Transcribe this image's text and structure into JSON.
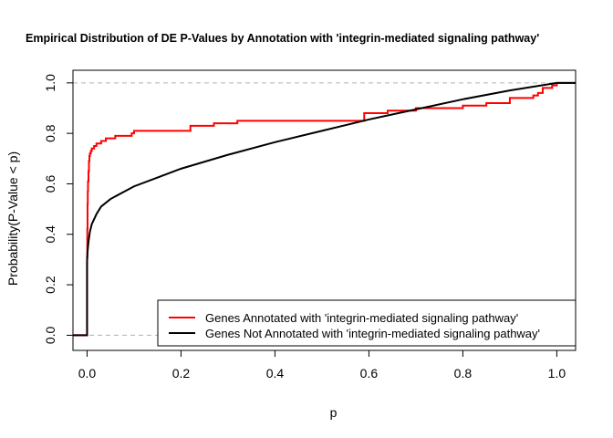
{
  "chart_data": {
    "type": "line",
    "title": "Empirical Distribution of DE P-Values by Annotation with 'integrin-mediated signaling pathway'",
    "xlabel": "p",
    "ylabel": "Probability(P-Value < p)",
    "xlim": [
      -0.03,
      1.04
    ],
    "ylim": [
      -0.06,
      1.05
    ],
    "xticks": [
      "0.0",
      "0.2",
      "0.4",
      "0.6",
      "0.8",
      "1.0"
    ],
    "yticks": [
      "0.0",
      "0.2",
      "0.4",
      "0.6",
      "0.8",
      "1.0"
    ],
    "grid": false,
    "reference_lines": [
      0,
      1
    ],
    "legend_position": "bottom-right",
    "series": [
      {
        "name": "Genes Annotated with 'integrin-mediated signaling pathway'",
        "color": "#ff0000",
        "step": true,
        "x": [
          -0.03,
          0.0,
          0.0005,
          0.001,
          0.0015,
          0.002,
          0.003,
          0.004,
          0.005,
          0.006,
          0.008,
          0.01,
          0.015,
          0.02,
          0.03,
          0.04,
          0.05,
          0.06,
          0.08,
          0.095,
          0.1,
          0.2,
          0.22,
          0.27,
          0.32,
          0.58,
          0.59,
          0.64,
          0.7,
          0.8,
          0.85,
          0.9,
          0.95,
          0.96,
          0.97,
          0.99,
          1.0,
          1.04
        ],
        "y": [
          0.0,
          0.31,
          0.42,
          0.52,
          0.57,
          0.61,
          0.65,
          0.69,
          0.71,
          0.72,
          0.73,
          0.74,
          0.75,
          0.76,
          0.77,
          0.78,
          0.78,
          0.79,
          0.79,
          0.8,
          0.81,
          0.81,
          0.83,
          0.84,
          0.85,
          0.85,
          0.88,
          0.89,
          0.9,
          0.91,
          0.92,
          0.94,
          0.95,
          0.96,
          0.98,
          0.99,
          1.0,
          1.0
        ]
      },
      {
        "name": "Genes Not Annotated with 'integrin-mediated signaling pathway'",
        "color": "#000000",
        "step": false,
        "x": [
          -0.03,
          0.0,
          0.0,
          0.001,
          0.003,
          0.006,
          0.01,
          0.02,
          0.03,
          0.05,
          0.08,
          0.1,
          0.15,
          0.2,
          0.3,
          0.4,
          0.5,
          0.6,
          0.7,
          0.8,
          0.9,
          1.0,
          1.04
        ],
        "y": [
          0.0,
          0.0,
          0.29,
          0.33,
          0.37,
          0.41,
          0.44,
          0.48,
          0.51,
          0.54,
          0.57,
          0.59,
          0.625,
          0.66,
          0.715,
          0.765,
          0.81,
          0.855,
          0.895,
          0.935,
          0.97,
          1.0,
          1.0
        ]
      }
    ]
  }
}
